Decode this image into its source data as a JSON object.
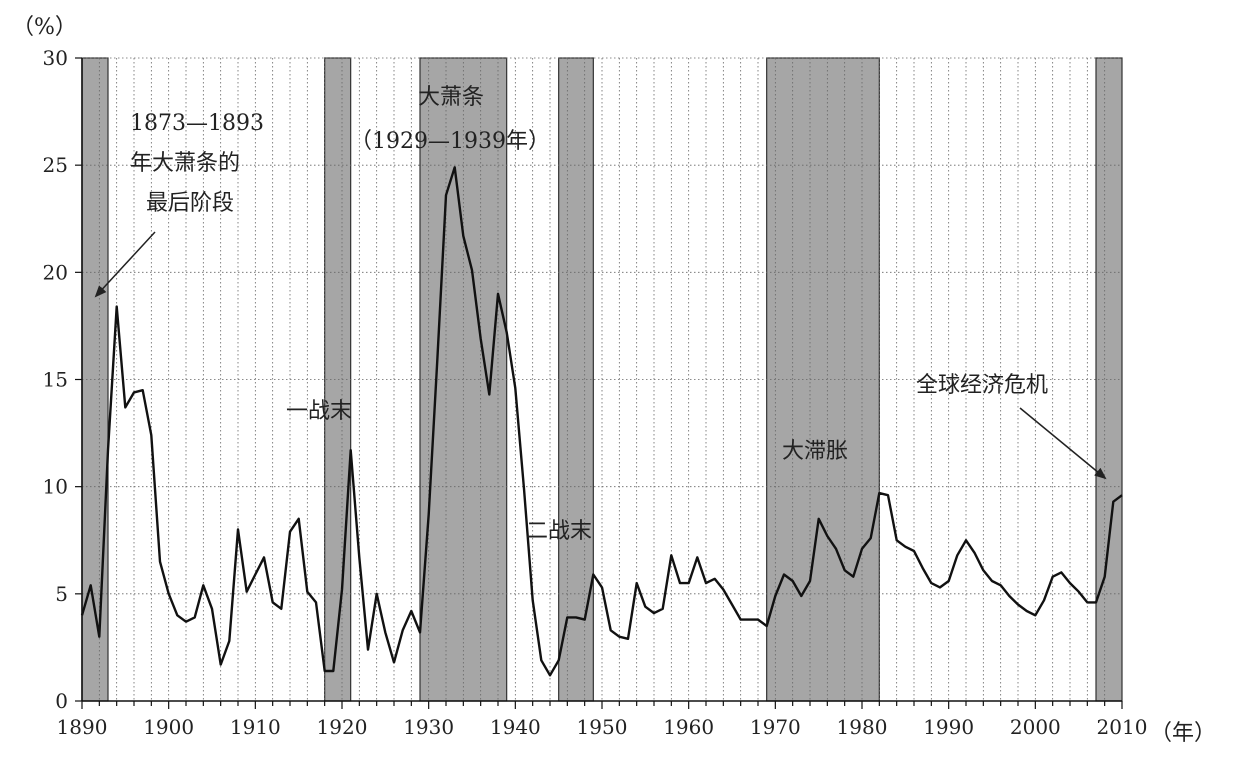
{
  "chart_data": {
    "type": "line",
    "ylabel": "（%）",
    "xlabel": "（年）",
    "xlim": [
      1890,
      2010
    ],
    "ylim": [
      0,
      30
    ],
    "x_ticks": [
      1890,
      1900,
      1910,
      1920,
      1930,
      1940,
      1950,
      1960,
      1970,
      1980,
      1990,
      2000,
      2010
    ],
    "y_ticks": [
      0,
      5,
      10,
      15,
      20,
      25,
      30
    ],
    "grid": {
      "vertical": "dotted",
      "horizontal": "dotted"
    },
    "shaded_periods": [
      [
        1890,
        1893
      ],
      [
        1918,
        1921
      ],
      [
        1929,
        1939
      ],
      [
        1945,
        1949
      ],
      [
        1969,
        1982
      ],
      [
        2007,
        2010
      ]
    ],
    "series": [
      {
        "x": [
          1890,
          1891,
          1892,
          1893,
          1894,
          1895,
          1896,
          1897,
          1898,
          1899,
          1900,
          1901,
          1902,
          1903,
          1904,
          1905,
          1906,
          1907,
          1908,
          1909,
          1910,
          1911,
          1912,
          1913,
          1914,
          1915,
          1916,
          1917,
          1918,
          1919,
          1920,
          1921,
          1922,
          1923,
          1924,
          1925,
          1926,
          1927,
          1928,
          1929,
          1930,
          1931,
          1932,
          1933,
          1934,
          1935,
          1936,
          1937,
          1938,
          1939,
          1940,
          1941,
          1942,
          1943,
          1944,
          1945,
          1946,
          1947,
          1948,
          1949,
          1950,
          1951,
          1952,
          1953,
          1954,
          1955,
          1956,
          1957,
          1958,
          1959,
          1960,
          1961,
          1962,
          1963,
          1964,
          1965,
          1966,
          1967,
          1968,
          1969,
          1970,
          1971,
          1972,
          1973,
          1974,
          1975,
          1976,
          1977,
          1978,
          1979,
          1980,
          1981,
          1982,
          1983,
          1984,
          1985,
          1986,
          1987,
          1988,
          1989,
          1990,
          1991,
          1992,
          1993,
          1994,
          1995,
          1996,
          1997,
          1998,
          1999,
          2000,
          2001,
          2002,
          2003,
          2004,
          2005,
          2006,
          2007,
          2008,
          2009,
          2010
        ],
        "y": [
          4.0,
          5.4,
          3.0,
          11.7,
          18.4,
          13.7,
          14.4,
          14.5,
          12.4,
          6.5,
          5.0,
          4.0,
          3.7,
          3.9,
          5.4,
          4.3,
          1.7,
          2.8,
          8.0,
          5.1,
          5.9,
          6.7,
          4.6,
          4.3,
          7.9,
          8.5,
          5.1,
          4.6,
          1.4,
          1.4,
          5.2,
          11.7,
          6.7,
          2.4,
          5.0,
          3.2,
          1.8,
          3.3,
          4.2,
          3.2,
          8.7,
          15.9,
          23.6,
          24.9,
          21.7,
          20.1,
          16.9,
          14.3,
          19.0,
          17.2,
          14.6,
          9.9,
          4.7,
          1.9,
          1.2,
          1.9,
          3.9,
          3.9,
          3.8,
          5.9,
          5.3,
          3.3,
          3.0,
          2.9,
          5.5,
          4.4,
          4.1,
          4.3,
          6.8,
          5.5,
          5.5,
          6.7,
          5.5,
          5.7,
          5.2,
          4.5,
          3.8,
          3.8,
          3.8,
          3.5,
          4.9,
          5.9,
          5.6,
          4.9,
          5.6,
          8.5,
          7.7,
          7.1,
          6.1,
          5.8,
          7.1,
          7.6,
          9.7,
          9.6,
          7.5,
          7.2,
          7.0,
          6.2,
          5.5,
          5.3,
          5.6,
          6.8,
          7.5,
          6.9,
          6.1,
          5.6,
          5.4,
          4.9,
          4.5,
          4.2,
          4.0,
          4.7,
          5.8,
          6.0,
          5.5,
          5.1,
          4.6,
          4.6,
          5.8,
          9.3,
          9.6
        ]
      }
    ],
    "annotations": [
      {
        "lines": [
          "1873—1893",
          "年大萧条的",
          "最后阶段"
        ],
        "arrow_to": [
          1891,
          19.0
        ]
      },
      {
        "lines": [
          "大萧条",
          "（1929—1939年）"
        ]
      },
      {
        "lines": [
          "一战末"
        ]
      },
      {
        "lines": [
          "二战末"
        ]
      },
      {
        "lines": [
          "大滞胀"
        ]
      },
      {
        "lines": [
          "全球经济危机"
        ],
        "arrow_to": [
          2009,
          10.5
        ]
      }
    ]
  }
}
